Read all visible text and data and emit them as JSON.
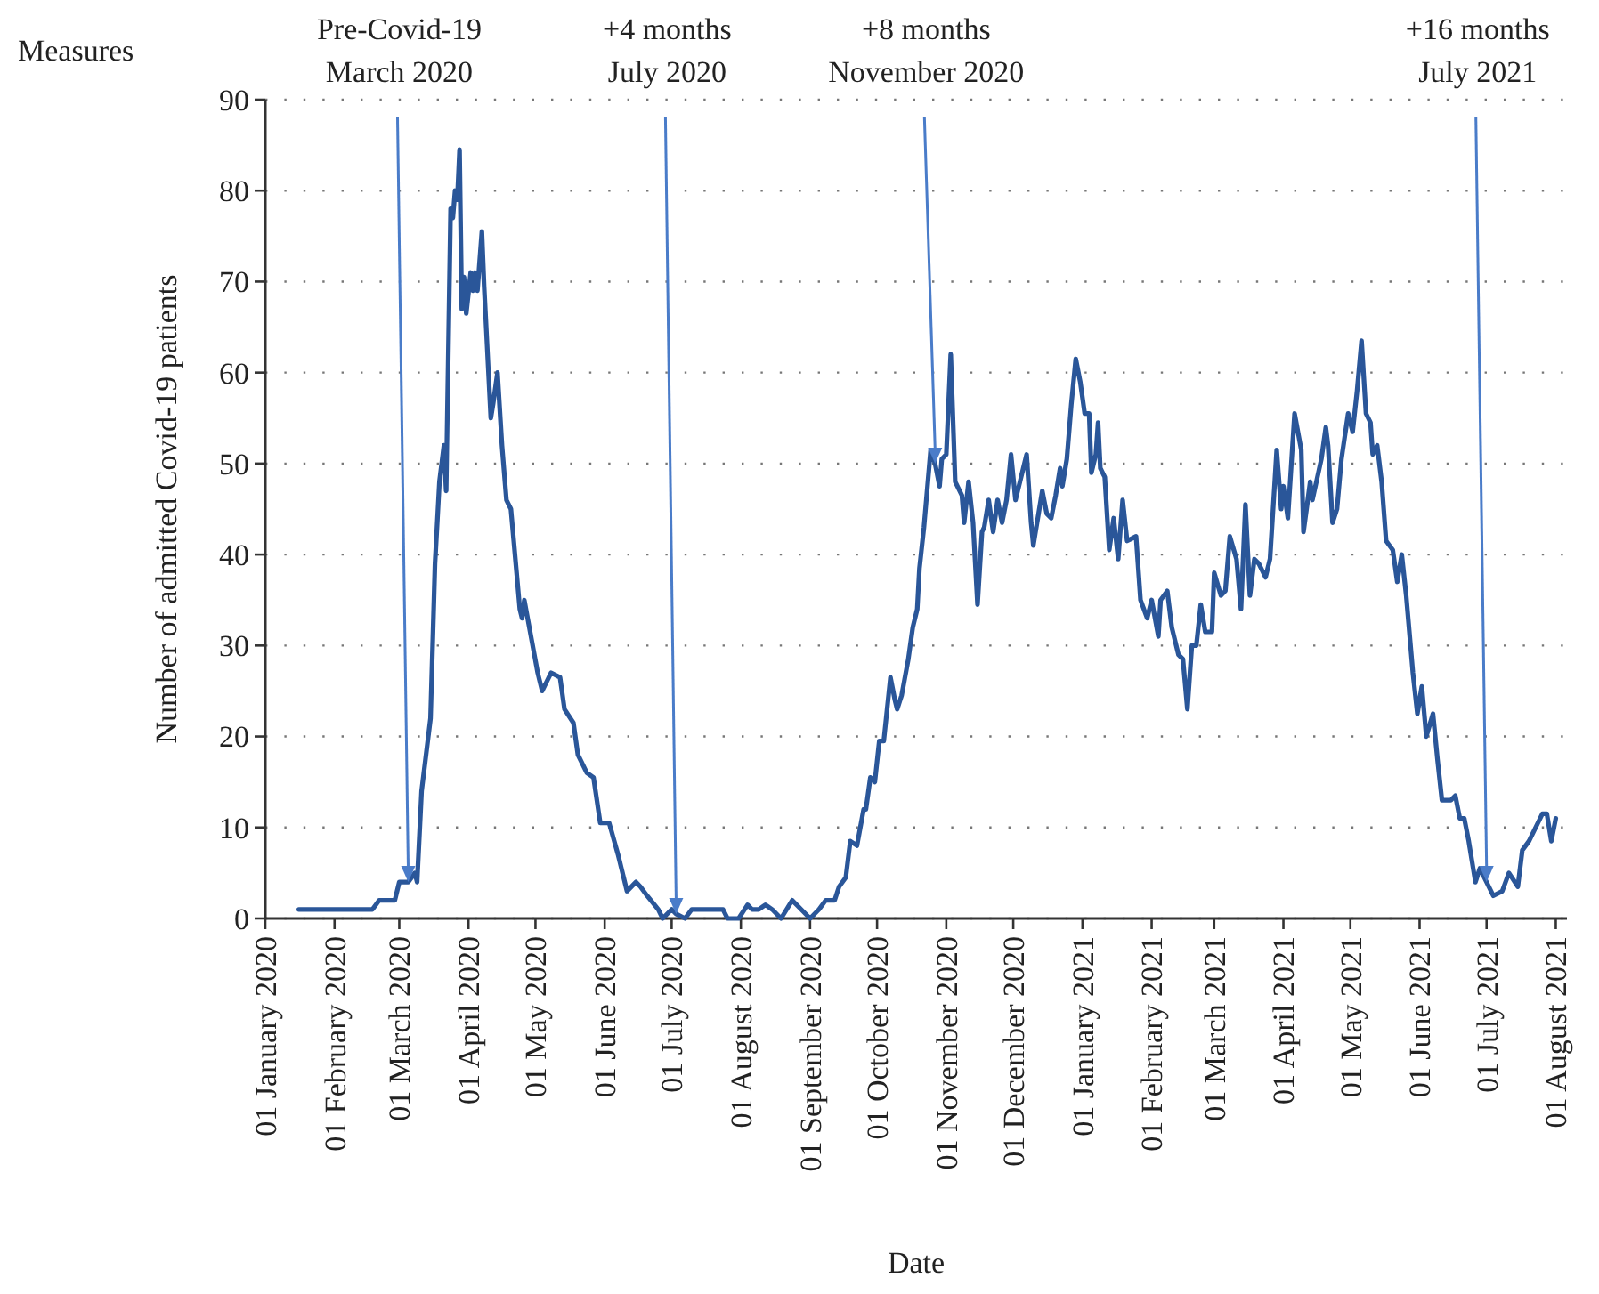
{
  "chart_data": {
    "type": "line",
    "xlabel": "Date",
    "ylabel": "Number of admitted Covid-19 patients",
    "xlim": [
      "2020-01-01",
      "2021-08-06"
    ],
    "xticks": [
      {
        "value": "2020-01-01",
        "label": "01 January 2020"
      },
      {
        "value": "2020-02-01",
        "label": "01 February 2020"
      },
      {
        "value": "2020-03-01",
        "label": "01 March 2020"
      },
      {
        "value": "2020-04-01",
        "label": "01 April 2020"
      },
      {
        "value": "2020-05-01",
        "label": "01 May 2020"
      },
      {
        "value": "2020-06-01",
        "label": "01 June 2020"
      },
      {
        "value": "2020-07-01",
        "label": "01 July 2020"
      },
      {
        "value": "2020-08-01",
        "label": "01 August 2020"
      },
      {
        "value": "2020-09-01",
        "label": "01 September 2020"
      },
      {
        "value": "2020-10-01",
        "label": "01 October 2020"
      },
      {
        "value": "2020-11-01",
        "label": "01 November 2020"
      },
      {
        "value": "2020-12-01",
        "label": "01 December 2020"
      },
      {
        "value": "2021-01-01",
        "label": "01 January 2021"
      },
      {
        "value": "2021-02-01",
        "label": "01 February 2021"
      },
      {
        "value": "2021-03-01",
        "label": "01 March 2021"
      },
      {
        "value": "2021-04-01",
        "label": "01 April 2021"
      },
      {
        "value": "2021-05-01",
        "label": "01 May 2021"
      },
      {
        "value": "2021-06-01",
        "label": "01 June 2021"
      },
      {
        "value": "2021-07-01",
        "label": "01 July 2021"
      },
      {
        "value": "2021-08-01",
        "label": "01 August 2021"
      }
    ],
    "ylim": [
      0,
      90
    ],
    "yticks": [
      0,
      10,
      20,
      30,
      40,
      50,
      60,
      70,
      80,
      90
    ],
    "grid": "y",
    "line_style": "solid",
    "marker": "none",
    "annotations": [
      "Measures",
      {
        "text": "Pre-Covid-19\nMarch 2020",
        "x": "2020-03-05",
        "y": 4
      },
      {
        "text": "+4 months\nJuly 2020",
        "x": "2020-07-03",
        "y": 0.5
      },
      {
        "text": "+8 months\nNovember 2020",
        "x": "2020-10-27",
        "y": 50
      },
      {
        "text": "+16 months\nJuly 2021",
        "x": "2021-07-01",
        "y": 4
      }
    ],
    "series": [
      {
        "color": "#2a5699",
        "x": [
          "2020-01-16",
          "2020-02-18",
          "2020-02-21",
          "2020-02-28",
          "2020-03-01",
          "2020-03-05",
          "2020-03-08",
          "2020-03-09",
          "2020-03-11",
          "2020-03-15",
          "2020-03-17",
          "2020-03-19",
          "2020-03-21",
          "2020-03-22",
          "2020-03-24",
          "2020-03-25",
          "2020-03-26",
          "2020-03-27",
          "2020-03-28",
          "2020-03-29",
          "2020-03-30",
          "2020-03-31",
          "2020-04-02",
          "2020-04-03",
          "2020-04-04",
          "2020-04-05",
          "2020-04-07",
          "2020-04-08",
          "2020-04-11",
          "2020-04-12",
          "2020-04-14",
          "2020-04-16",
          "2020-04-18",
          "2020-04-20",
          "2020-04-24",
          "2020-04-25",
          "2020-04-26",
          "2020-04-29",
          "2020-05-02",
          "2020-05-04",
          "2020-05-08",
          "2020-05-12",
          "2020-05-14",
          "2020-05-18",
          "2020-05-20",
          "2020-05-24",
          "2020-05-27",
          "2020-05-30",
          "2020-06-03",
          "2020-06-07",
          "2020-06-11",
          "2020-06-15",
          "2020-06-17",
          "2020-06-20",
          "2020-06-25",
          "2020-06-27",
          "2020-07-01",
          "2020-07-03",
          "2020-07-07",
          "2020-07-10",
          "2020-07-24",
          "2020-07-26",
          "2020-07-31",
          "2020-08-04",
          "2020-08-06",
          "2020-08-09",
          "2020-08-12",
          "2020-08-15",
          "2020-08-19",
          "2020-08-24",
          "2020-08-28",
          "2020-09-01",
          "2020-09-05",
          "2020-09-08",
          "2020-09-12",
          "2020-09-14",
          "2020-09-17",
          "2020-09-19",
          "2020-09-22",
          "2020-09-25",
          "2020-09-26",
          "2020-09-28",
          "2020-09-30",
          "2020-10-02",
          "2020-10-04",
          "2020-10-07",
          "2020-10-09",
          "2020-10-10",
          "2020-10-12",
          "2020-10-15",
          "2020-10-17",
          "2020-10-19",
          "2020-10-20",
          "2020-10-22",
          "2020-10-25",
          "2020-10-27",
          "2020-10-29",
          "2020-10-30",
          "2020-11-01",
          "2020-11-03",
          "2020-11-05",
          "2020-11-08",
          "2020-11-09",
          "2020-11-11",
          "2020-11-13",
          "2020-11-15",
          "2020-11-17",
          "2020-11-18",
          "2020-11-20",
          "2020-11-22",
          "2020-11-24",
          "2020-11-26",
          "2020-11-28",
          "2020-11-30",
          "2020-12-02",
          "2020-12-04",
          "2020-12-07",
          "2020-12-09",
          "2020-12-10",
          "2020-12-14",
          "2020-12-16",
          "2020-12-18",
          "2020-12-20",
          "2020-12-22",
          "2020-12-23",
          "2020-12-25",
          "2020-12-27",
          "2020-12-29",
          "2020-12-31",
          "2021-01-02",
          "2021-01-04",
          "2021-01-05",
          "2021-01-07",
          "2021-01-08",
          "2021-01-09",
          "2021-01-11",
          "2021-01-13",
          "2021-01-15",
          "2021-01-17",
          "2021-01-19",
          "2021-01-21",
          "2021-01-25",
          "2021-01-27",
          "2021-01-30",
          "2021-02-01",
          "2021-02-04",
          "2021-02-05",
          "2021-02-08",
          "2021-02-10",
          "2021-02-13",
          "2021-02-15",
          "2021-02-17",
          "2021-02-19",
          "2021-02-21",
          "2021-02-23",
          "2021-02-25",
          "2021-02-28",
          "2021-03-01",
          "2021-03-04",
          "2021-03-06",
          "2021-03-08",
          "2021-03-11",
          "2021-03-13",
          "2021-03-15",
          "2021-03-17",
          "2021-03-19",
          "2021-03-21",
          "2021-03-24",
          "2021-03-26",
          "2021-03-29",
          "2021-03-31",
          "2021-04-01",
          "2021-04-03",
          "2021-04-06",
          "2021-04-09",
          "2021-04-10",
          "2021-04-13",
          "2021-04-14",
          "2021-04-18",
          "2021-04-20",
          "2021-04-21",
          "2021-04-23",
          "2021-04-25",
          "2021-04-27",
          "2021-04-30",
          "2021-05-02",
          "2021-05-04",
          "2021-05-06",
          "2021-05-08",
          "2021-05-10",
          "2021-05-11",
          "2021-05-13",
          "2021-05-15",
          "2021-05-17",
          "2021-05-20",
          "2021-05-22",
          "2021-05-24",
          "2021-05-26",
          "2021-05-29",
          "2021-05-31",
          "2021-06-02",
          "2021-06-04",
          "2021-06-07",
          "2021-06-09",
          "2021-06-11",
          "2021-06-15",
          "2021-06-17",
          "2021-06-19",
          "2021-06-21",
          "2021-06-23",
          "2021-06-26",
          "2021-06-28",
          "2021-07-01",
          "2021-07-04",
          "2021-07-08",
          "2021-07-11",
          "2021-07-15",
          "2021-07-17",
          "2021-07-20",
          "2021-07-22",
          "2021-07-24",
          "2021-07-26",
          "2021-07-28",
          "2021-07-30",
          "2021-08-01"
        ],
        "values": [
          1,
          1,
          2,
          2,
          4,
          4,
          5,
          4,
          14,
          22,
          39,
          48,
          52,
          47,
          78,
          77,
          80,
          79,
          84.5,
          67,
          70.5,
          66.5,
          71,
          69,
          71,
          69,
          75.5,
          69.5,
          55,
          56.5,
          60,
          52,
          46,
          45,
          34,
          33,
          35,
          31,
          27,
          25,
          27,
          26.5,
          23,
          21.5,
          18,
          16,
          15.5,
          10.5,
          10.5,
          7,
          3,
          4,
          3.5,
          2.5,
          1,
          0,
          1,
          0.5,
          0,
          1,
          1,
          0,
          0,
          1.5,
          1,
          1,
          1.5,
          1,
          0,
          2,
          1,
          0,
          1,
          2,
          2,
          3.5,
          4.5,
          8.5,
          8,
          12,
          12,
          15.5,
          15,
          19.5,
          19.5,
          26.5,
          24,
          23,
          24.5,
          28.5,
          32,
          34,
          38.5,
          43,
          51.5,
          50,
          47.5,
          50.5,
          51,
          62,
          48,
          46.5,
          43.5,
          48,
          43.5,
          34.5,
          42.5,
          43,
          46,
          42.5,
          46,
          43.5,
          46,
          51,
          46,
          48,
          51,
          43.5,
          41,
          47,
          44.5,
          44,
          46.5,
          49.5,
          47.5,
          50.5,
          56.5,
          61.5,
          59,
          55.5,
          55.5,
          49,
          51,
          54.5,
          49.5,
          48.5,
          40.5,
          44,
          39.5,
          46,
          41.5,
          42,
          35,
          33,
          35,
          31,
          35,
          36,
          32,
          29,
          28.5,
          23,
          30,
          30,
          34.5,
          31.5,
          31.5,
          38,
          35.5,
          36,
          42,
          39.5,
          34,
          45.5,
          35.5,
          39.5,
          39,
          37.5,
          39.5,
          51.5,
          45,
          47.5,
          44,
          55.5,
          51.5,
          42.5,
          48,
          46,
          50.5,
          54,
          52,
          43.5,
          45,
          50.5,
          55.5,
          53.5,
          58,
          63.5,
          55.5,
          54.5,
          51,
          52,
          48,
          41.5,
          40.5,
          37,
          40,
          35.5,
          27,
          22.5,
          25.5,
          20,
          22.5,
          17.5,
          13,
          13,
          13.5,
          11,
          11,
          8.5,
          4,
          5.5,
          4,
          2.5,
          3,
          5,
          3.5,
          7.5,
          8.5,
          9.5,
          10.5,
          11.5,
          11.5,
          8.5,
          11
        ]
      }
    ]
  }
}
